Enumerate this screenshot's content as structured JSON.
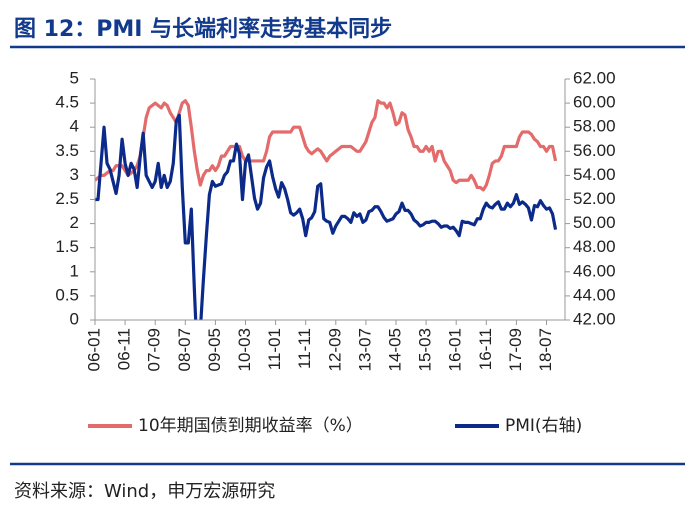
{
  "chart_data": {
    "type": "line",
    "title": "图 12：PMI 与长端利率走势基本同步",
    "source": "资料来源：Wind，申万宏源研究",
    "categories": [
      "06-01",
      null,
      null,
      null,
      null,
      null,
      null,
      null,
      null,
      null,
      "06-11",
      null,
      null,
      null,
      null,
      null,
      null,
      null,
      null,
      null,
      "07-09",
      null,
      null,
      null,
      null,
      null,
      null,
      null,
      null,
      null,
      "08-07",
      null,
      null,
      null,
      null,
      null,
      null,
      null,
      null,
      null,
      "09-05",
      null,
      null,
      null,
      null,
      null,
      null,
      null,
      null,
      null,
      "10-03",
      null,
      null,
      null,
      null,
      null,
      null,
      null,
      null,
      null,
      "11-01",
      null,
      null,
      null,
      null,
      null,
      null,
      null,
      null,
      null,
      "11-11",
      null,
      null,
      null,
      null,
      null,
      null,
      null,
      null,
      null,
      "12-09",
      null,
      null,
      null,
      null,
      null,
      null,
      null,
      null,
      null,
      "13-07",
      null,
      null,
      null,
      null,
      null,
      null,
      null,
      null,
      null,
      "14-05",
      null,
      null,
      null,
      null,
      null,
      null,
      null,
      null,
      null,
      "15-03",
      null,
      null,
      null,
      null,
      null,
      null,
      null,
      null,
      null,
      "16-01",
      null,
      null,
      null,
      null,
      null,
      null,
      null,
      null,
      null,
      "16-11",
      null,
      null,
      null,
      null,
      null,
      null,
      null,
      null,
      null,
      "17-09",
      null,
      null,
      null,
      null,
      null,
      null,
      null,
      null,
      null,
      "18-07",
      null,
      null,
      null
    ],
    "series": [
      {
        "name": "10年期国债到期收益率（%）",
        "color": "#e46b6b",
        "values": [
          2.9,
          2.95,
          3.0,
          3.0,
          3.05,
          3.1,
          3.1,
          3.2,
          3.2,
          3.2,
          3.1,
          3.0,
          3.05,
          3.1,
          3.2,
          3.4,
          3.8,
          4.2,
          4.4,
          4.45,
          4.5,
          4.45,
          4.4,
          4.5,
          4.45,
          4.3,
          4.2,
          4.1,
          4.3,
          4.5,
          4.55,
          4.45,
          4.0,
          3.5,
          3.1,
          2.8,
          3.0,
          3.1,
          3.1,
          3.2,
          3.1,
          3.2,
          3.4,
          3.4,
          3.5,
          3.6,
          3.6,
          3.6,
          3.6,
          3.4,
          3.3,
          3.3,
          3.3,
          3.3,
          3.3,
          3.3,
          3.3,
          3.5,
          3.8,
          3.9,
          3.9,
          3.9,
          3.9,
          3.9,
          3.9,
          3.9,
          4.0,
          4.0,
          4.0,
          3.8,
          3.6,
          3.5,
          3.45,
          3.5,
          3.55,
          3.5,
          3.4,
          3.3,
          3.4,
          3.45,
          3.5,
          3.55,
          3.6,
          3.6,
          3.6,
          3.6,
          3.55,
          3.5,
          3.5,
          3.6,
          3.7,
          3.9,
          4.1,
          4.2,
          4.55,
          4.5,
          4.5,
          4.4,
          4.5,
          4.3,
          4.05,
          4.1,
          4.3,
          4.25,
          3.95,
          3.8,
          3.6,
          3.6,
          3.5,
          3.5,
          3.6,
          3.5,
          3.6,
          3.3,
          3.5,
          3.5,
          3.3,
          3.2,
          3.1,
          2.9,
          2.85,
          2.9,
          2.9,
          2.9,
          2.9,
          3.0,
          2.9,
          2.75,
          2.75,
          2.7,
          2.8,
          3.0,
          3.25,
          3.3,
          3.3,
          3.4,
          3.6,
          3.6,
          3.6,
          3.6,
          3.6,
          3.8,
          3.9,
          3.9,
          3.9,
          3.85,
          3.75,
          3.7,
          3.6,
          3.6,
          3.5,
          3.6,
          3.6,
          3.3
        ]
      },
      {
        "name": "PMI(右轴)",
        "color": "#0c2a8a",
        "axis": "y2",
        "values": [
          52,
          52,
          55,
          58,
          55,
          54.5,
          53.5,
          52.5,
          54,
          57,
          55,
          54,
          55,
          54.5,
          53,
          55.5,
          57.5,
          54,
          53.5,
          53,
          53.5,
          55,
          53,
          54,
          53,
          53.5,
          55,
          58.5,
          59,
          53,
          48.4,
          48.4,
          51.2,
          44.6,
          38.8,
          41.2,
          45.3,
          49.0,
          52.4,
          53.5,
          53.1,
          53.2,
          53.3,
          54.0,
          54.3,
          55.2,
          55.2,
          56.6,
          55.8,
          52.0,
          55.1,
          55.7,
          53.9,
          52.1,
          51.2,
          51.7,
          53.8,
          54.7,
          55.2,
          53.9,
          52.9,
          52.2,
          53.4,
          52.9,
          52.0,
          50.9,
          50.7,
          50.9,
          51.2,
          50.4,
          49.0,
          50.3,
          50.5,
          51.0,
          53.1,
          53.3,
          50.4,
          50.2,
          50.1,
          49.2,
          49.8,
          50.2,
          50.6,
          50.6,
          50.4,
          50.1,
          50.9,
          50.6,
          50.8,
          50.1,
          50.3,
          51.0,
          51.1,
          51.4,
          51.4,
          51.0,
          50.5,
          50.2,
          50.3,
          50.4,
          50.8,
          51.0,
          51.7,
          51.1,
          51.1,
          50.8,
          50.3,
          50.1,
          49.8,
          49.9,
          50.1,
          50.1,
          50.2,
          50.2,
          50.0,
          49.7,
          49.8,
          49.8,
          49.6,
          49.7,
          49.4,
          49.0,
          50.2,
          50.1,
          50.1,
          50.0,
          49.9,
          50.4,
          50.4,
          51.2,
          51.7,
          51.4,
          51.3,
          51.6,
          51.8,
          51.2,
          51.2,
          51.7,
          51.4,
          51.7,
          52.4,
          51.6,
          51.8,
          51.6,
          51.3,
          50.3,
          51.5,
          51.4,
          51.9,
          51.5,
          51.2,
          51.3,
          50.8,
          49.5
        ]
      }
    ],
    "ylim": [
      0,
      5
    ],
    "yticks": [
      0,
      0.5,
      1,
      1.5,
      2,
      2.5,
      3,
      3.5,
      4,
      4.5,
      5
    ],
    "y2lim": [
      42,
      62
    ],
    "y2ticks": [
      {
        "value": 42,
        "label": "42.00"
      },
      {
        "value": 44,
        "label": "44.00"
      },
      {
        "value": 46,
        "label": "46.00"
      },
      {
        "value": 48,
        "label": "48.00"
      },
      {
        "value": 50,
        "label": "50.00"
      },
      {
        "value": 52,
        "label": "52.00"
      },
      {
        "value": 54,
        "label": "54.00"
      },
      {
        "value": 56,
        "label": "56.00"
      },
      {
        "value": 58,
        "label": "58.00"
      },
      {
        "value": 60,
        "label": "60.00"
      },
      {
        "value": 62,
        "label": "62.00"
      }
    ],
    "legend": "bottom"
  }
}
